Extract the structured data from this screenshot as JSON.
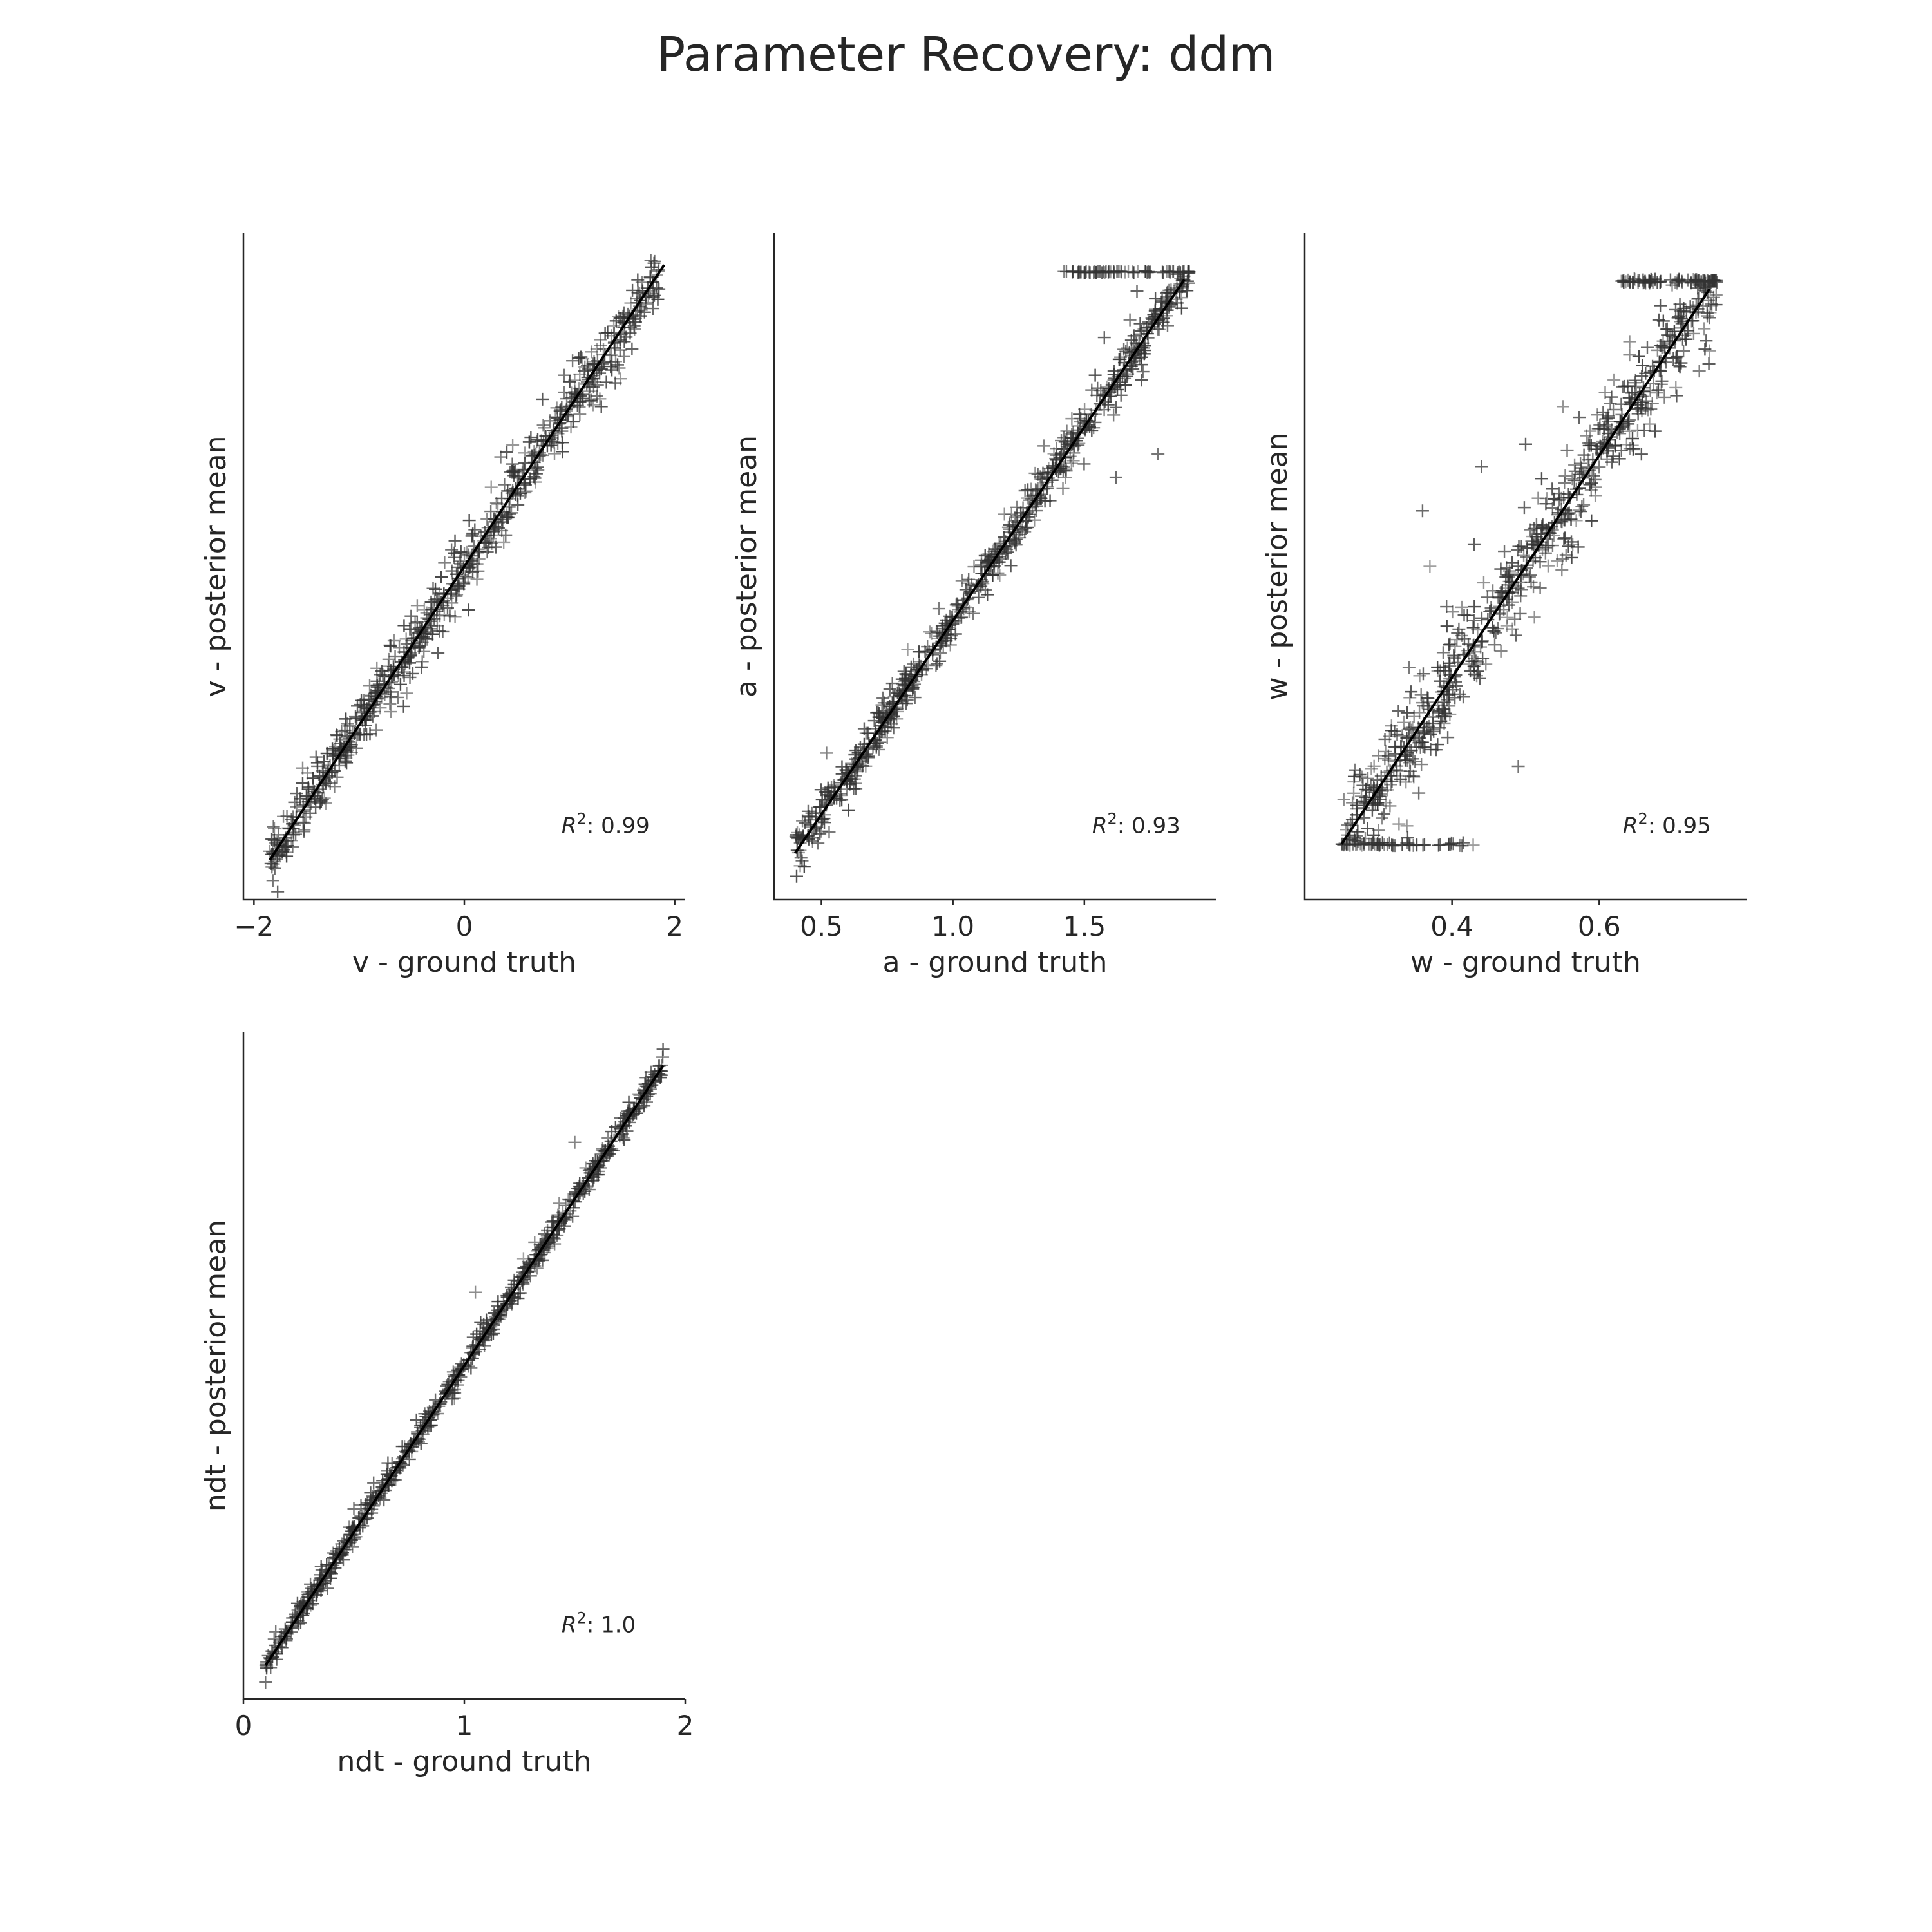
{
  "figure": {
    "title": "Parameter Recovery: ddm"
  },
  "chart_data": [
    {
      "type": "scatter",
      "parameter": "v",
      "xlabel": "v - ground truth",
      "ylabel": "v - posterior mean",
      "xlim": [
        -2.1,
        2.1
      ],
      "ylim": [
        -2.1,
        2.1
      ],
      "xticks": [
        -2,
        0,
        2
      ],
      "xtick_labels": [
        "−2",
        "0",
        "2"
      ],
      "r2_label": "R",
      "r2_value": ": 0.99",
      "r2_sup": "2",
      "identity_line": [
        [
          -1.85,
          -1.85
        ],
        [
          1.9,
          1.9
        ]
      ],
      "x_range": [
        -1.85,
        1.85
      ],
      "noise": 0.09,
      "outliers": [
        [
          -0.45,
          -0.45
        ],
        [
          -0.4,
          -0.48
        ],
        [
          -0.4,
          -0.6
        ],
        [
          -0.9,
          -0.75
        ]
      ]
    },
    {
      "type": "scatter",
      "parameter": "a",
      "xlabel": "a - ground truth",
      "ylabel": "a - posterior mean",
      "xlim": [
        0.32,
        2.0
      ],
      "ylim": [
        0.28,
        2.0
      ],
      "xticks": [
        0.5,
        1.0,
        1.5
      ],
      "xtick_labels": [
        "0.5",
        "1.0",
        "1.5"
      ],
      "r2_label": "R",
      "r2_value": ": 0.93",
      "r2_sup": "2",
      "identity_line": [
        [
          0.4,
          0.4
        ],
        [
          1.88,
          1.88
        ]
      ],
      "x_range": [
        0.4,
        1.9
      ],
      "noise": 0.03,
      "ceiling": 1.9,
      "ceiling_x_range": [
        1.42,
        1.9
      ],
      "outliers": [
        [
          1.55,
          1.6
        ],
        [
          1.62,
          1.55
        ],
        [
          1.52,
          1.5
        ],
        [
          1.65,
          1.7
        ],
        [
          1.7,
          1.85
        ],
        [
          1.78,
          1.43
        ],
        [
          1.62,
          1.37
        ]
      ]
    },
    {
      "type": "scatter",
      "parameter": "w",
      "xlabel": "w - ground truth",
      "ylabel": "w - posterior mean",
      "xlim": [
        0.2,
        0.8
      ],
      "ylim": [
        0.2,
        0.8
      ],
      "xticks": [
        0.4,
        0.6
      ],
      "xtick_labels": [
        "0.4",
        "0.6"
      ],
      "r2_label": "R",
      "r2_value": ": 0.95",
      "r2_sup": "2",
      "identity_line": [
        [
          0.25,
          0.25
        ],
        [
          0.75,
          0.75
        ]
      ],
      "x_range": [
        0.25,
        0.76
      ],
      "noise": 0.022,
      "ceiling": 0.757,
      "ceiling_x_range": [
        0.63,
        0.76
      ],
      "floor": 0.25,
      "floor_x_range": [
        0.25,
        0.43
      ],
      "outliers": [
        [
          0.44,
          0.59
        ],
        [
          0.36,
          0.55
        ],
        [
          0.5,
          0.61
        ],
        [
          0.43,
          0.52
        ],
        [
          0.49,
          0.32
        ],
        [
          0.37,
          0.5
        ]
      ]
    },
    {
      "type": "scatter",
      "parameter": "ndt",
      "xlabel": "ndt - ground truth",
      "ylabel": "ndt - posterior mean",
      "xlim": [
        0.0,
        2.0
      ],
      "ylim": [
        0.0,
        2.0
      ],
      "xticks": [
        0,
        1,
        2
      ],
      "xtick_labels": [
        "0",
        "1",
        "2"
      ],
      "r2_label": "R",
      "r2_value": ": 1.0",
      "r2_sup": "2",
      "identity_line": [
        [
          0.1,
          0.1
        ],
        [
          1.9,
          1.9
        ]
      ],
      "x_range": [
        0.1,
        1.9
      ],
      "noise": 0.018,
      "outliers": [
        [
          0.1,
          0.05
        ],
        [
          1.5,
          1.67
        ],
        [
          1.05,
          1.22
        ],
        [
          0.5,
          0.57
        ]
      ]
    }
  ]
}
